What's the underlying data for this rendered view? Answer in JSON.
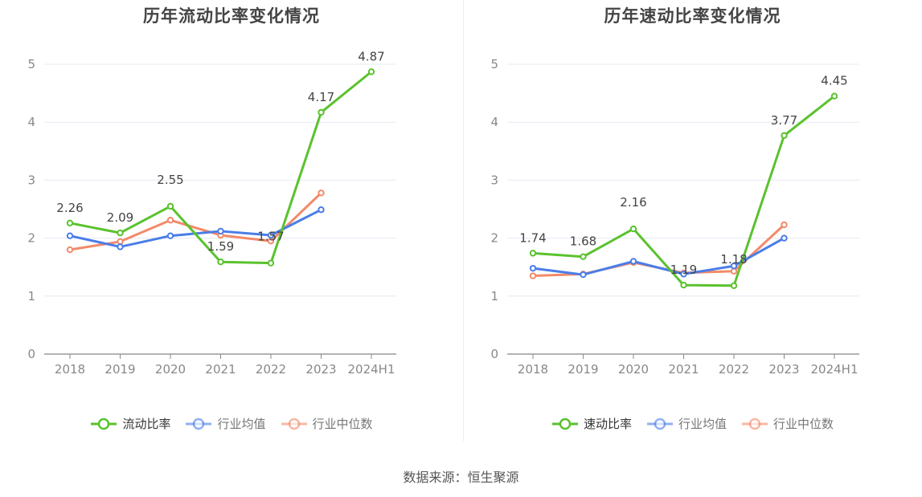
{
  "source_text": "数据来源：恒生聚源",
  "chart_data": [
    {
      "type": "line",
      "title": "历年流动比率变化情况",
      "categories": [
        "2018",
        "2019",
        "2020",
        "2021",
        "2022",
        "2023",
        "2024H1"
      ],
      "ylim": [
        0,
        5
      ],
      "yticks": [
        0,
        1,
        2,
        3,
        4,
        5
      ],
      "grid": true,
      "legend_position": "bottom",
      "series": [
        {
          "name": "流动比率",
          "color": "#5ac22e",
          "values": [
            2.26,
            2.09,
            2.55,
            1.59,
            1.57,
            4.17,
            4.87
          ],
          "labels": [
            "2.26",
            "2.09",
            "2.55",
            "1.59",
            "1.57",
            "4.17",
            "4.87"
          ]
        },
        {
          "name": "行业均值",
          "color": "#4a7de8",
          "values": [
            2.04,
            1.85,
            2.04,
            2.12,
            2.05,
            2.49,
            null
          ]
        },
        {
          "name": "行业中位数",
          "color": "#f28a6a",
          "values": [
            1.8,
            1.94,
            2.31,
            2.05,
            1.95,
            2.78,
            null
          ]
        }
      ]
    },
    {
      "type": "line",
      "title": "历年速动比率变化情况",
      "categories": [
        "2018",
        "2019",
        "2020",
        "2021",
        "2022",
        "2023",
        "2024H1"
      ],
      "ylim": [
        0,
        5
      ],
      "yticks": [
        0,
        1,
        2,
        3,
        4,
        5
      ],
      "grid": true,
      "legend_position": "bottom",
      "series": [
        {
          "name": "速动比率",
          "color": "#5ac22e",
          "values": [
            1.74,
            1.68,
            2.16,
            1.19,
            1.18,
            3.77,
            4.45
          ],
          "labels": [
            "1.74",
            "1.68",
            "2.16",
            "1.19",
            "1.18",
            "3.77",
            "4.45"
          ]
        },
        {
          "name": "行业均值",
          "color": "#4a7de8",
          "values": [
            1.48,
            1.37,
            1.6,
            1.38,
            1.52,
            2.0,
            null
          ]
        },
        {
          "name": "行业中位数",
          "color": "#f28a6a",
          "values": [
            1.35,
            1.38,
            1.58,
            1.4,
            1.43,
            2.23,
            null
          ]
        }
      ]
    }
  ]
}
